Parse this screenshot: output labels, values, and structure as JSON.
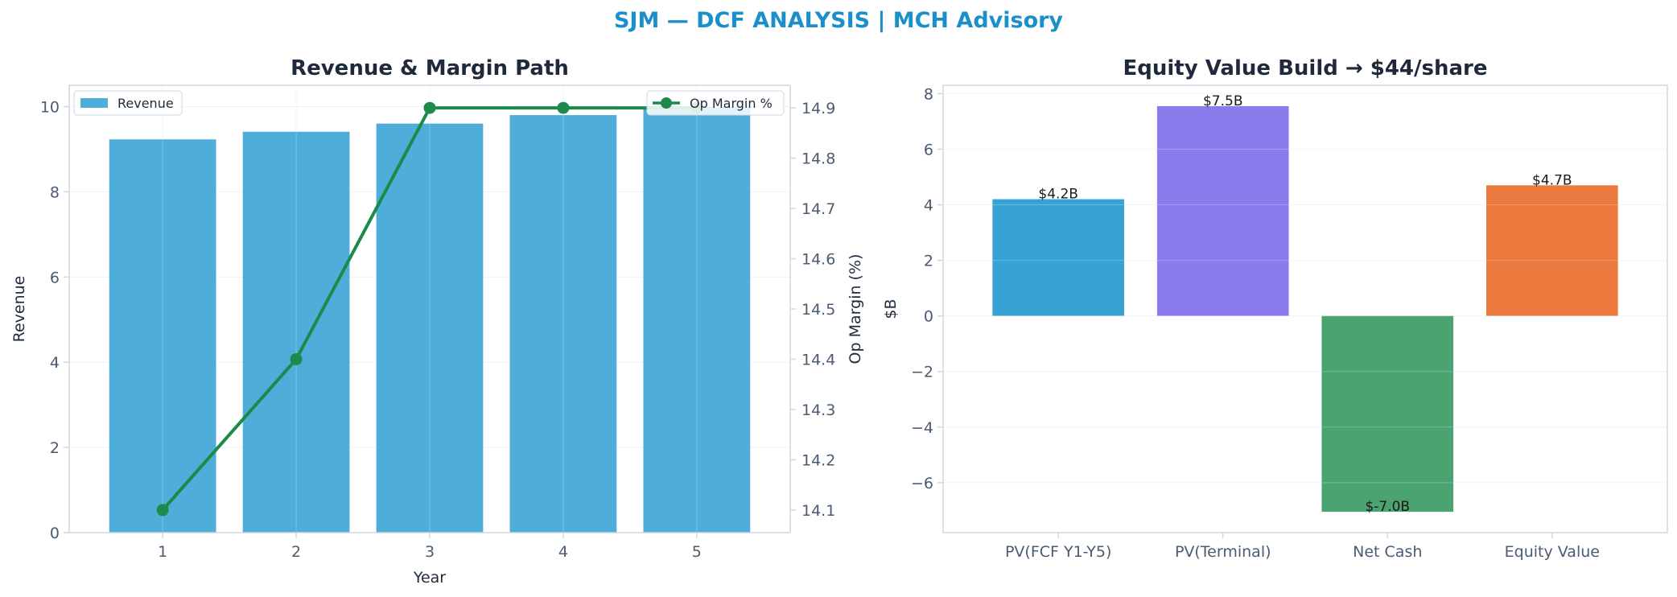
{
  "figure_title": "SJM — DCF ANALYSIS | MCH Advisory",
  "colors": {
    "title": "#1a8fc9",
    "panel_title": "#1e2a3b",
    "tick": "#4a5b72",
    "axis": "#cfd8e3",
    "grid": "#eef2f6",
    "revenue_bar": "#4eadd9",
    "margin_line": "#1b8a4b",
    "pv_fcf": "#36a3d4",
    "pv_terminal": "#8a7ced",
    "net_cash": "#4aa370",
    "equity_value": "#ec7a3e"
  },
  "chart_data": [
    {
      "type": "bar",
      "title": "Revenue & Margin Path",
      "xlabel": "Year",
      "ylabel": "Revenue",
      "y2label": "Op Margin (%)",
      "categories": [
        "1",
        "2",
        "3",
        "4",
        "5"
      ],
      "series": [
        {
          "name": "Revenue",
          "type": "bar",
          "axis": "left",
          "values": [
            9.23,
            9.41,
            9.6,
            9.8,
            9.99
          ]
        },
        {
          "name": "Op Margin %",
          "type": "line",
          "axis": "right",
          "values": [
            14.1,
            14.4,
            14.9,
            14.9,
            14.9
          ]
        }
      ],
      "ylim": [
        0,
        10.5
      ],
      "yticks": [
        "0",
        "2",
        "4",
        "6",
        "8",
        "10"
      ],
      "y2lim": [
        14.055,
        14.945
      ],
      "y2ticks": [
        "14.1",
        "14.2",
        "14.3",
        "14.4",
        "14.5",
        "14.6",
        "14.7",
        "14.8",
        "14.9"
      ],
      "grid": true,
      "legend": [
        "upper-left",
        "upper-right"
      ]
    },
    {
      "type": "bar",
      "title": "Equity Value Build → $44/share",
      "xlabel": "",
      "ylabel": "$B",
      "categories": [
        "PV(FCF Y1-Y5)",
        "PV(Terminal)",
        "Net Cash",
        "Equity Value"
      ],
      "values": [
        4.2,
        7.55,
        -7.05,
        4.7
      ],
      "data_labels": [
        "$4.2B",
        "$7.5B",
        "$-7.0B",
        "$4.7B"
      ],
      "ylim": [
        -7.8,
        8.3
      ],
      "yticks": [
        "−6",
        "−4",
        "−2",
        "0",
        "2",
        "4",
        "6",
        "8"
      ],
      "grid": true
    }
  ]
}
